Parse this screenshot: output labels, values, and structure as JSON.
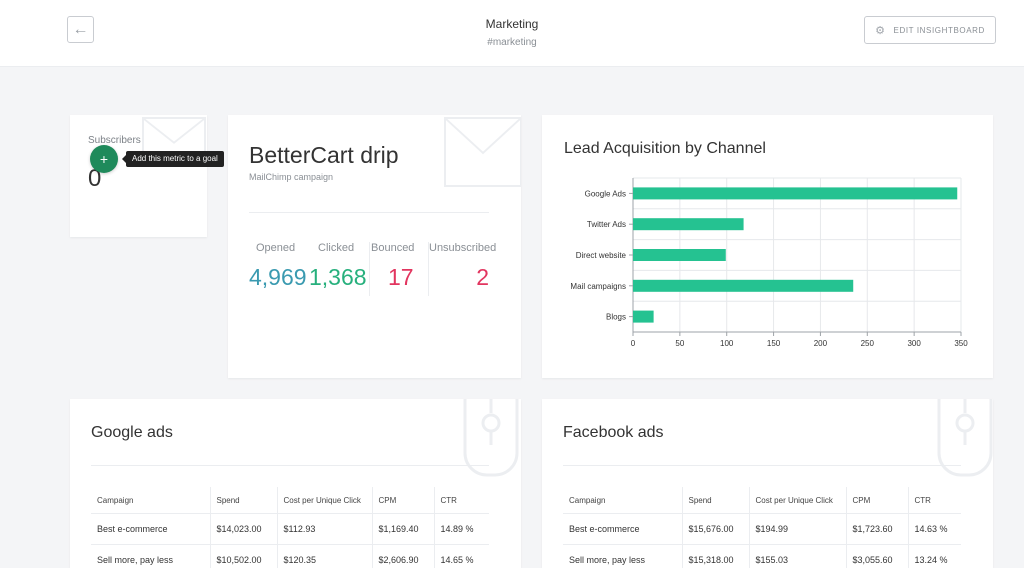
{
  "header": {
    "title": "Marketing",
    "subtitle": "#marketing",
    "edit_label": "EDIT INSIGHTBOARD",
    "back_icon": "arrow-left-icon",
    "edit_icon": "gear-icon"
  },
  "subscribers": {
    "label": "Subscribers",
    "value": "0",
    "add_button": "+",
    "tooltip": "Add this metric to a goal"
  },
  "bettercart": {
    "title": "BetterCart drip",
    "subtitle": "MailChimp campaign",
    "stats": [
      {
        "label": "Opened",
        "value": "4,969",
        "color": "#3a9ab0"
      },
      {
        "label": "Clicked",
        "value": "1,368",
        "color": "#27b07d"
      },
      {
        "label": "Bounced",
        "value": "17",
        "color": "#e2355f"
      },
      {
        "label": "Unsubscribed",
        "value": "2",
        "color": "#e2355f"
      }
    ]
  },
  "chart_data": {
    "type": "bar",
    "orientation": "horizontal",
    "title": "Lead Acquisition by Channel",
    "categories": [
      "Google Ads",
      "Twitter Ads",
      "Direct website",
      "Mail campaigns",
      "Blogs"
    ],
    "values": [
      346,
      118,
      99,
      235,
      22
    ],
    "xlim": [
      0,
      350
    ],
    "xticks": [
      0,
      50,
      100,
      150,
      200,
      250,
      300,
      350
    ],
    "grid": true,
    "bar_color": "#25c291"
  },
  "google_ads": {
    "title": "Google ads",
    "columns": [
      "Campaign",
      "Spend",
      "Cost per Unique Click",
      "CPM",
      "CTR"
    ],
    "rows": [
      [
        "Best e-commerce",
        "$14,023.00",
        "$112.93",
        "$1,169.40",
        "14.89 %"
      ],
      [
        "Sell more, pay less",
        "$10,502.00",
        "$120.35",
        "$2,606.90",
        "14.65 %"
      ]
    ]
  },
  "facebook_ads": {
    "title": "Facebook ads",
    "columns": [
      "Campaign",
      "Spend",
      "Cost per Unique Click",
      "CPM",
      "CTR"
    ],
    "rows": [
      [
        "Best e-commerce",
        "$15,676.00",
        "$194.99",
        "$1,723.60",
        "14.63 %"
      ],
      [
        "Sell more, pay less",
        "$15,318.00",
        "$155.03",
        "$3,055.60",
        "13.24 %"
      ]
    ]
  }
}
